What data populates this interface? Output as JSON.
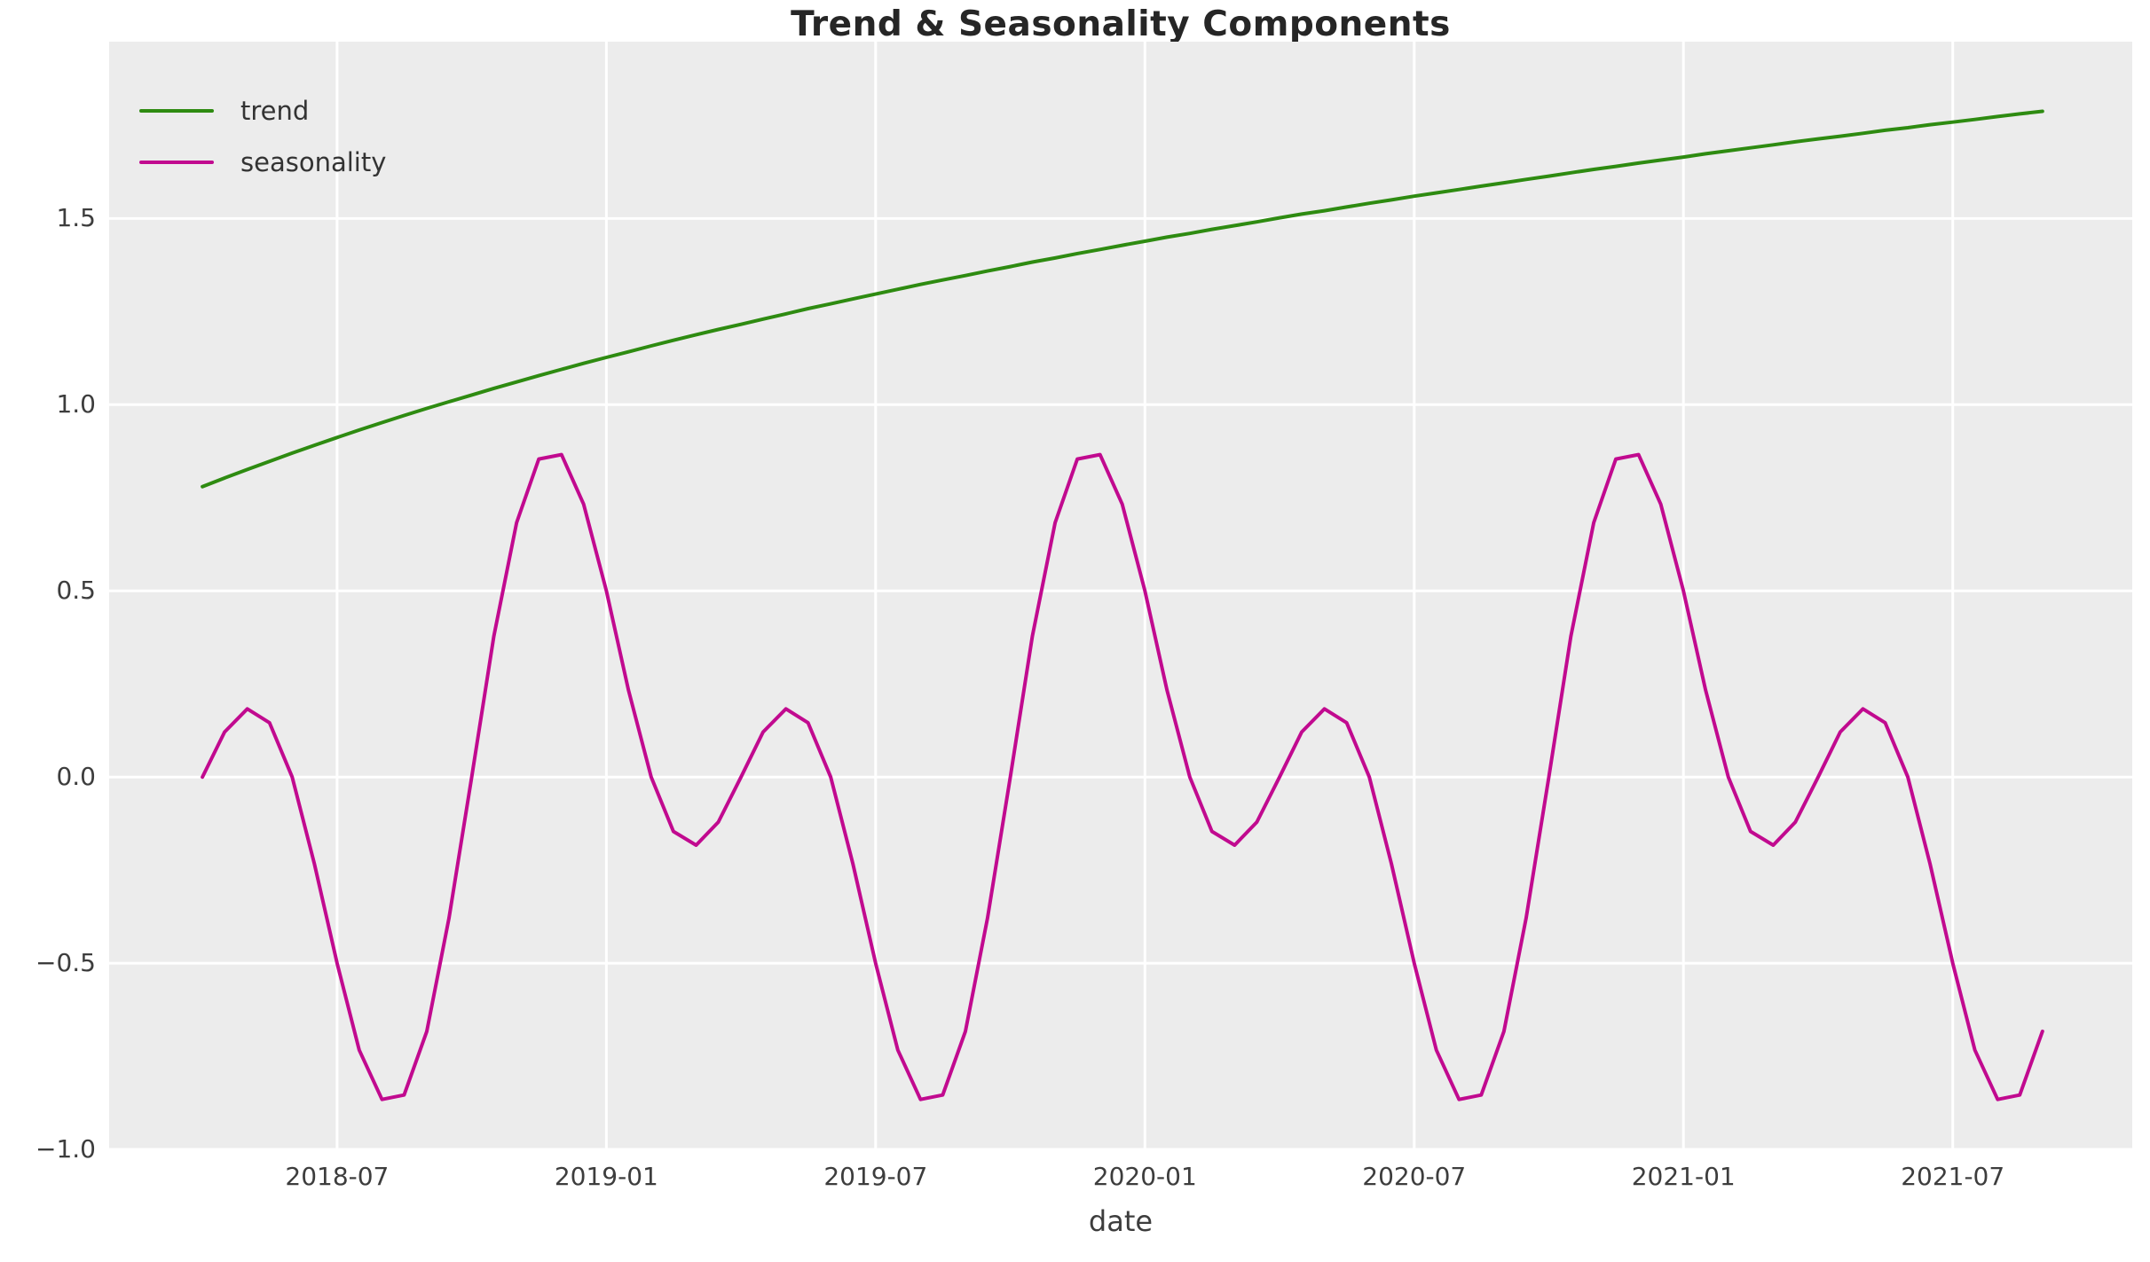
{
  "chart_data": {
    "type": "line",
    "title": "Trend & Seasonality Components",
    "xlabel": "date",
    "ylabel": "",
    "grid": true,
    "legend_position": "upper left",
    "plot_background": "#ececec",
    "grid_color": "#ffffff",
    "ylim": [
      -1.0,
      1.975
    ],
    "xlim": [
      "2018-01-29",
      "2021-11-01"
    ],
    "y_ticks": [
      -1.0,
      -0.5,
      0.0,
      0.5,
      1.0,
      1.5
    ],
    "y_tick_labels": [
      "−1.0",
      "−0.5",
      "0.0",
      "0.5",
      "1.0",
      "1.5"
    ],
    "x_tick_labels": [
      "2018-07",
      "2019-01",
      "2019-07",
      "2020-01",
      "2020-07",
      "2021-01",
      "2021-07"
    ],
    "x": [
      "2018-04-01",
      "2018-04-16",
      "2018-05-01",
      "2018-05-16",
      "2018-06-01",
      "2018-06-16",
      "2018-07-01",
      "2018-07-16",
      "2018-08-01",
      "2018-08-16",
      "2018-09-01",
      "2018-09-16",
      "2018-10-01",
      "2018-10-16",
      "2018-11-01",
      "2018-11-16",
      "2018-12-01",
      "2018-12-16",
      "2019-01-01",
      "2019-01-16",
      "2019-02-01",
      "2019-02-16",
      "2019-03-01",
      "2019-03-16",
      "2019-04-01",
      "2019-04-16",
      "2019-05-01",
      "2019-05-16",
      "2019-06-01",
      "2019-06-16",
      "2019-07-01",
      "2019-07-16",
      "2019-08-01",
      "2019-08-16",
      "2019-09-01",
      "2019-09-16",
      "2019-10-01",
      "2019-10-16",
      "2019-11-01",
      "2019-11-16",
      "2019-12-01",
      "2019-12-16",
      "2020-01-01",
      "2020-01-16",
      "2020-02-01",
      "2020-02-16",
      "2020-03-01",
      "2020-03-16",
      "2020-04-01",
      "2020-04-16",
      "2020-05-01",
      "2020-05-16",
      "2020-06-01",
      "2020-06-16",
      "2020-07-01",
      "2020-07-16",
      "2020-08-01",
      "2020-08-16",
      "2020-09-01",
      "2020-09-16",
      "2020-10-01",
      "2020-10-16",
      "2020-11-01",
      "2020-11-16",
      "2020-12-01",
      "2020-12-16",
      "2021-01-01",
      "2021-01-16",
      "2021-02-01",
      "2021-02-16",
      "2021-03-01",
      "2021-03-16",
      "2021-04-01",
      "2021-04-16",
      "2021-05-01",
      "2021-05-16",
      "2021-06-01",
      "2021-06-16",
      "2021-07-01",
      "2021-07-16",
      "2021-08-01",
      "2021-08-16",
      "2021-09-01"
    ],
    "series": [
      {
        "name": "trend",
        "color": "#2e8b11",
        "values": [
          0.78,
          0.803,
          0.826,
          0.848,
          0.87,
          0.891,
          0.912,
          0.932,
          0.952,
          0.971,
          0.99,
          1.008,
          1.026,
          1.044,
          1.061,
          1.078,
          1.095,
          1.111,
          1.127,
          1.142,
          1.158,
          1.173,
          1.188,
          1.202,
          1.216,
          1.23,
          1.244,
          1.258,
          1.271,
          1.284,
          1.297,
          1.31,
          1.323,
          1.335,
          1.347,
          1.359,
          1.371,
          1.383,
          1.394,
          1.406,
          1.417,
          1.428,
          1.439,
          1.45,
          1.46,
          1.471,
          1.481,
          1.491,
          1.502,
          1.512,
          1.521,
          1.531,
          1.541,
          1.55,
          1.56,
          1.569,
          1.578,
          1.587,
          1.596,
          1.605,
          1.614,
          1.623,
          1.632,
          1.64,
          1.649,
          1.657,
          1.665,
          1.674,
          1.682,
          1.69,
          1.698,
          1.706,
          1.714,
          1.721,
          1.729,
          1.737,
          1.744,
          1.752,
          1.759,
          1.766,
          1.774,
          1.781,
          1.788
        ]
      },
      {
        "name": "seasonality",
        "color": "#c10a8f",
        "values": [
          0.0,
          0.121,
          0.183,
          0.146,
          0.0,
          -0.233,
          -0.5,
          -0.733,
          -0.866,
          -0.854,
          -0.683,
          -0.379,
          0.0,
          0.379,
          0.683,
          0.854,
          0.866,
          0.733,
          0.5,
          0.233,
          0.0,
          -0.146,
          -0.183,
          -0.121,
          0.0,
          0.121,
          0.183,
          0.146,
          0.0,
          -0.233,
          -0.5,
          -0.733,
          -0.866,
          -0.854,
          -0.683,
          -0.379,
          0.0,
          0.379,
          0.683,
          0.854,
          0.866,
          0.733,
          0.5,
          0.233,
          0.0,
          -0.146,
          -0.183,
          -0.121,
          0.0,
          0.121,
          0.183,
          0.146,
          0.0,
          -0.233,
          -0.5,
          -0.733,
          -0.866,
          -0.854,
          -0.683,
          -0.379,
          0.0,
          0.379,
          0.683,
          0.854,
          0.866,
          0.733,
          0.5,
          0.233,
          0.0,
          -0.146,
          -0.183,
          -0.121,
          0.0,
          0.121,
          0.183,
          0.146,
          0.0,
          -0.233,
          -0.5,
          -0.733,
          -0.866,
          -0.854,
          -0.683
        ]
      }
    ]
  }
}
